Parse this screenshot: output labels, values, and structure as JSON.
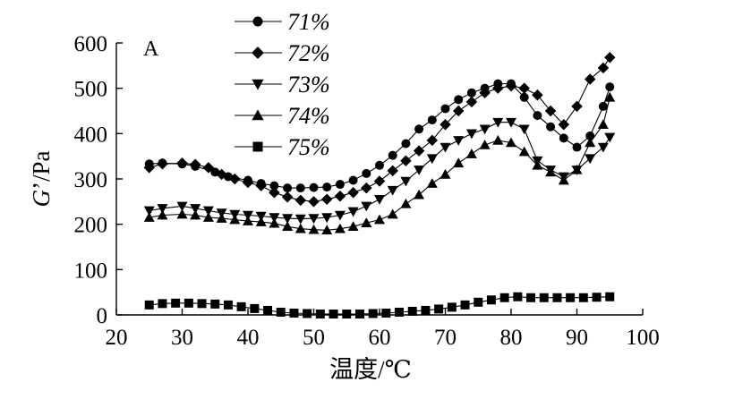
{
  "chart_data": {
    "type": "line",
    "panel_label": "A",
    "xlabel": "温度/℃",
    "ylabel_italic": "G",
    "ylabel_rest": "’/Pa",
    "xlim": [
      20,
      100
    ],
    "ylim": [
      0,
      600
    ],
    "xticks": [
      20,
      30,
      40,
      50,
      60,
      70,
      80,
      90,
      100
    ],
    "yticks": [
      0,
      100,
      200,
      300,
      400,
      500,
      600
    ],
    "grid": false,
    "legend_position": "top-center",
    "series": [
      {
        "name": "71%",
        "marker": "circle",
        "points": [
          [
            25,
            333
          ],
          [
            27,
            335
          ],
          [
            30,
            333
          ],
          [
            32,
            328
          ],
          [
            35,
            315
          ],
          [
            37,
            305
          ],
          [
            40,
            297
          ],
          [
            42,
            290
          ],
          [
            44,
            285
          ],
          [
            46,
            280
          ],
          [
            48,
            280
          ],
          [
            50,
            281
          ],
          [
            52,
            282
          ],
          [
            54,
            288
          ],
          [
            56,
            297
          ],
          [
            58,
            312
          ],
          [
            60,
            330
          ],
          [
            62,
            352
          ],
          [
            64,
            378
          ],
          [
            66,
            410
          ],
          [
            68,
            430
          ],
          [
            70,
            455
          ],
          [
            72,
            475
          ],
          [
            74,
            490
          ],
          [
            76,
            500
          ],
          [
            78,
            510
          ],
          [
            80,
            510
          ],
          [
            82,
            480
          ],
          [
            84,
            440
          ],
          [
            86,
            415
          ],
          [
            88,
            390
          ],
          [
            90,
            370
          ],
          [
            92,
            395
          ],
          [
            94,
            460
          ],
          [
            95,
            503
          ]
        ]
      },
      {
        "name": "72%",
        "marker": "diamond",
        "points": [
          [
            25,
            325
          ],
          [
            27,
            333
          ],
          [
            30,
            335
          ],
          [
            32,
            332
          ],
          [
            34,
            325
          ],
          [
            36,
            310
          ],
          [
            38,
            300
          ],
          [
            40,
            292
          ],
          [
            42,
            285
          ],
          [
            44,
            270
          ],
          [
            46,
            260
          ],
          [
            48,
            253
          ],
          [
            50,
            250
          ],
          [
            52,
            255
          ],
          [
            54,
            262
          ],
          [
            56,
            270
          ],
          [
            58,
            280
          ],
          [
            60,
            295
          ],
          [
            62,
            318
          ],
          [
            64,
            340
          ],
          [
            66,
            362
          ],
          [
            68,
            385
          ],
          [
            70,
            420
          ],
          [
            72,
            450
          ],
          [
            74,
            470
          ],
          [
            76,
            490
          ],
          [
            78,
            500
          ],
          [
            80,
            505
          ],
          [
            82,
            500
          ],
          [
            84,
            485
          ],
          [
            86,
            450
          ],
          [
            88,
            420
          ],
          [
            90,
            460
          ],
          [
            92,
            520
          ],
          [
            94,
            545
          ],
          [
            95,
            568
          ]
        ]
      },
      {
        "name": "73%",
        "marker": "triangle-down",
        "points": [
          [
            25,
            230
          ],
          [
            27,
            235
          ],
          [
            30,
            240
          ],
          [
            32,
            235
          ],
          [
            34,
            230
          ],
          [
            36,
            225
          ],
          [
            38,
            222
          ],
          [
            40,
            220
          ],
          [
            42,
            218
          ],
          [
            44,
            215
          ],
          [
            46,
            213
          ],
          [
            48,
            212
          ],
          [
            50,
            213
          ],
          [
            52,
            215
          ],
          [
            54,
            220
          ],
          [
            56,
            228
          ],
          [
            58,
            240
          ],
          [
            60,
            255
          ],
          [
            62,
            275
          ],
          [
            64,
            295
          ],
          [
            66,
            320
          ],
          [
            68,
            345
          ],
          [
            70,
            370
          ],
          [
            72,
            385
          ],
          [
            74,
            400
          ],
          [
            76,
            410
          ],
          [
            78,
            425
          ],
          [
            80,
            425
          ],
          [
            82,
            410
          ],
          [
            84,
            340
          ],
          [
            86,
            320
          ],
          [
            88,
            305
          ],
          [
            90,
            320
          ],
          [
            92,
            345
          ],
          [
            94,
            370
          ],
          [
            95,
            392
          ]
        ]
      },
      {
        "name": "74%",
        "marker": "triangle-up",
        "points": [
          [
            25,
            215
          ],
          [
            27,
            220
          ],
          [
            30,
            222
          ],
          [
            32,
            220
          ],
          [
            34,
            215
          ],
          [
            36,
            213
          ],
          [
            38,
            210
          ],
          [
            40,
            207
          ],
          [
            42,
            205
          ],
          [
            44,
            202
          ],
          [
            46,
            195
          ],
          [
            48,
            190
          ],
          [
            50,
            188
          ],
          [
            52,
            187
          ],
          [
            54,
            190
          ],
          [
            56,
            195
          ],
          [
            58,
            203
          ],
          [
            60,
            210
          ],
          [
            62,
            222
          ],
          [
            64,
            245
          ],
          [
            66,
            265
          ],
          [
            68,
            290
          ],
          [
            70,
            310
          ],
          [
            72,
            335
          ],
          [
            74,
            355
          ],
          [
            76,
            375
          ],
          [
            78,
            385
          ],
          [
            80,
            380
          ],
          [
            82,
            360
          ],
          [
            84,
            330
          ],
          [
            86,
            315
          ],
          [
            88,
            297
          ],
          [
            90,
            320
          ],
          [
            92,
            380
          ],
          [
            94,
            420
          ],
          [
            95,
            480
          ]
        ]
      },
      {
        "name": "75%",
        "marker": "square",
        "points": [
          [
            25,
            22
          ],
          [
            27,
            25
          ],
          [
            29,
            26
          ],
          [
            31,
            26
          ],
          [
            33,
            25
          ],
          [
            35,
            24
          ],
          [
            37,
            22
          ],
          [
            39,
            18
          ],
          [
            41,
            14
          ],
          [
            43,
            10
          ],
          [
            45,
            6
          ],
          [
            47,
            4
          ],
          [
            49,
            3
          ],
          [
            51,
            2
          ],
          [
            53,
            2
          ],
          [
            55,
            2
          ],
          [
            57,
            2
          ],
          [
            59,
            3
          ],
          [
            61,
            4
          ],
          [
            63,
            6
          ],
          [
            65,
            8
          ],
          [
            67,
            10
          ],
          [
            69,
            13
          ],
          [
            71,
            17
          ],
          [
            73,
            22
          ],
          [
            75,
            28
          ],
          [
            77,
            33
          ],
          [
            79,
            38
          ],
          [
            81,
            40
          ],
          [
            83,
            38
          ],
          [
            85,
            38
          ],
          [
            87,
            38
          ],
          [
            89,
            38
          ],
          [
            91,
            38
          ],
          [
            93,
            39
          ],
          [
            95,
            40
          ]
        ]
      }
    ]
  }
}
